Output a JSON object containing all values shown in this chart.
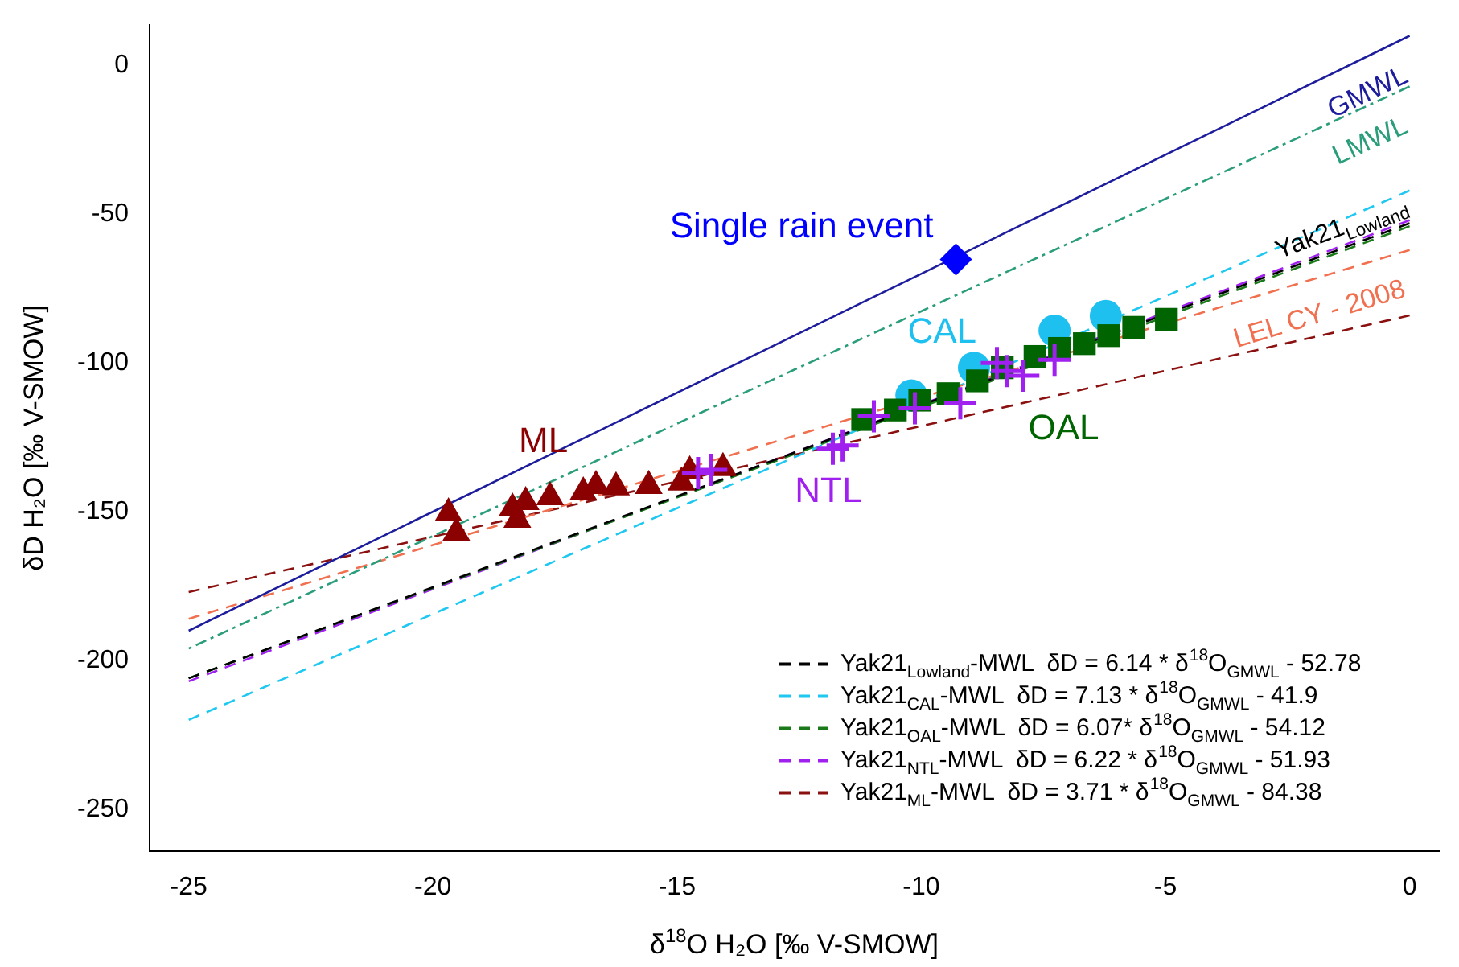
{
  "chart_data": {
    "type": "scatter",
    "xlabel": "δ$^{18}$O H₂O [‰ V-SMOW]",
    "ylabel": "δD H₂O [‰ V-SMOW]",
    "xlim": [
      -25.8,
      0.6
    ],
    "xticks": [
      -25,
      -20,
      -15,
      -10,
      -5,
      0
    ],
    "ylim": [
      -264,
      13.6
    ],
    "yticks": [
      0,
      -50,
      -100,
      -150,
      -200,
      -250
    ],
    "grid": false,
    "legend": "bottom right",
    "annotations": [
      "Yak21$_{Lowland}$"
    ],
    "series": [
      {
        "name": "GMWL",
        "type": "line",
        "line_style": "solid",
        "marker": "none",
        "color": "#1c1c9c",
        "x": [
          -25,
          0
        ],
        "values": [
          -190,
          10
        ]
      },
      {
        "name": "LMWL",
        "type": "line",
        "line_style": "dotted",
        "marker": "none",
        "color": "#2a9d7a",
        "x": [
          -25,
          0
        ],
        "values": [
          -196,
          -7
        ]
      },
      {
        "name": "LEL CY - 2008",
        "type": "line",
        "line_style": "dashed",
        "marker": "none",
        "color": "#f07050",
        "x": [
          -25,
          0
        ],
        "values": [
          -186,
          -62
        ]
      },
      {
        "name": "Yak21$_{Lowland}$-MWL  δD = 6.14 * δ$^{18}$O$_{GMWL}$ - 52.78",
        "type": "line",
        "line_style": "dashed",
        "marker": "none",
        "color": "#000000",
        "x": [
          -25,
          0
        ],
        "values": [
          -206,
          -53
        ]
      },
      {
        "name": "Yak21$_{CAL}$-MWL  δD = 7.13 * δ$^{18}$O$_{GMWL}$ - 41.9",
        "type": "line",
        "line_style": "dashed",
        "marker": "none",
        "color": "#1ec8f0",
        "x": [
          -25,
          0
        ],
        "values": [
          -220,
          -42
        ]
      },
      {
        "name": "Yak21$_{OAL}$-MWL  δD = 6.07* δ$^{18}$O$_{GMWL}$ - 54.12",
        "type": "line",
        "line_style": "dashed",
        "marker": "none",
        "color": "#1a7a1a",
        "x": [
          -25,
          0
        ],
        "values": [
          -206,
          -54
        ]
      },
      {
        "name": "Yak21$_{NTL}$-MWL  δD = 6.22 * δ$^{18}$O$_{GMWL}$ - 51.93",
        "type": "line",
        "line_style": "dashed",
        "marker": "none",
        "color": "#a020f0",
        "x": [
          -25,
          0
        ],
        "values": [
          -207,
          -52
        ]
      },
      {
        "name": "Yak21$_{ML}$-MWL  δD = 3.71 * δ$^{18}$O$_{GMWL}$ - 84.38",
        "type": "line",
        "line_style": "dashed",
        "marker": "none",
        "color": "#8b1010",
        "x": [
          -25,
          0
        ],
        "values": [
          -177,
          -84
        ]
      },
      {
        "name": "ML",
        "type": "scatter",
        "marker": "triangle",
        "color": "#8b0000",
        "x": [
          -19.68,
          -19.52,
          -18.37,
          -18.27,
          -18.1,
          -17.6,
          -16.92,
          -16.66,
          -16.25,
          -15.58,
          -14.91,
          -14.74,
          -14.06
        ],
        "values": [
          -150.5,
          -157.1,
          -148.9,
          -152.7,
          -146.7,
          -145.1,
          -143.5,
          -141.3,
          -141.8,
          -141.3,
          -140.2,
          -136.4,
          -135.3
        ]
      },
      {
        "name": "CAL",
        "type": "scatter",
        "marker": "circle",
        "color": "#1ec0f0",
        "x": [
          -10.2,
          -8.92,
          -7.27,
          -6.22
        ],
        "values": [
          -110.9,
          -101.6,
          -89.1,
          -84.2
        ]
      },
      {
        "name": "OAL",
        "type": "scatter",
        "marker": "square",
        "color": "#006400",
        "x": [
          -11.2,
          -10.53,
          -10.03,
          -9.45,
          -8.85,
          -8.34,
          -7.67,
          -7.17,
          -6.66,
          -6.16,
          -5.65,
          -4.98
        ],
        "values": [
          -119.0,
          -115.8,
          -112.5,
          -110.3,
          -106.0,
          -101.6,
          -97.8,
          -95.1,
          -93.5,
          -90.8,
          -88.0,
          -85.3
        ]
      },
      {
        "name": "NTL",
        "type": "scatter",
        "marker": "cross",
        "color": "#a020f0",
        "x": [
          -14.57,
          -14.3,
          -11.81,
          -11.61,
          -10.97,
          -10.13,
          -9.2,
          -8.45,
          -8.24,
          -7.91,
          -7.27
        ],
        "values": [
          -137.0,
          -135.9,
          -128.8,
          -127.7,
          -117.9,
          -115.2,
          -113.5,
          -100.0,
          -102.7,
          -104.3,
          -98.9
        ]
      },
      {
        "name": "Single rain event",
        "type": "scatter",
        "marker": "diamond",
        "color": "#0000ff",
        "x": [
          -9.29
        ],
        "values": [
          -65.2
        ]
      }
    ]
  }
}
